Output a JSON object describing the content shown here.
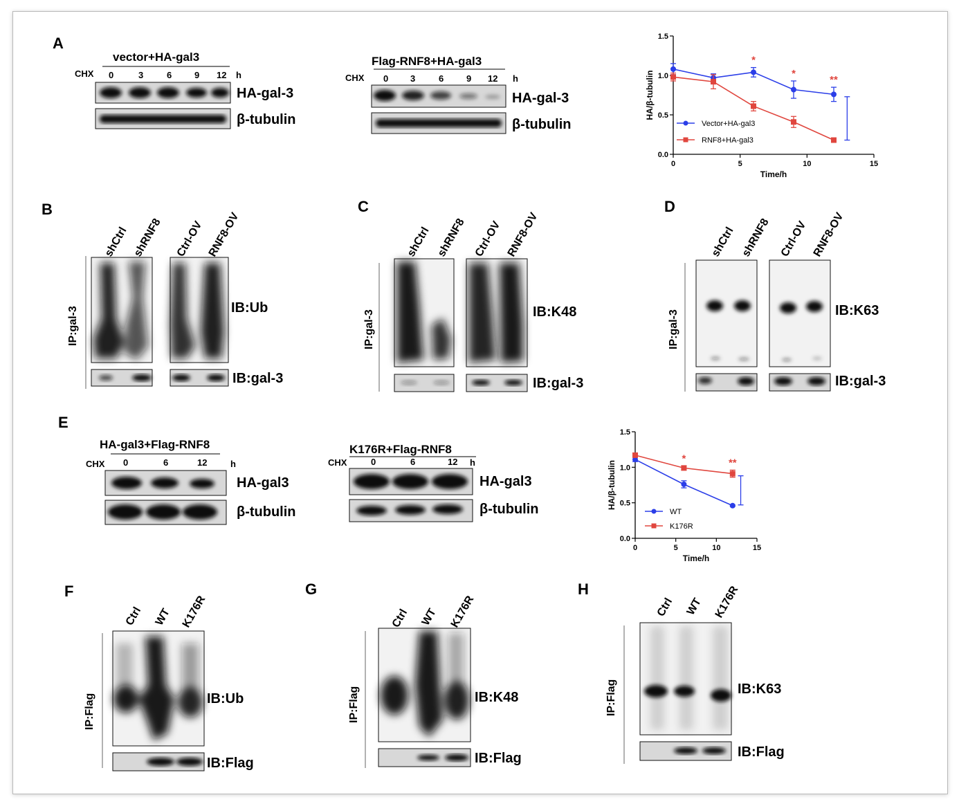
{
  "panels": {
    "A": {
      "label": "A",
      "left": {
        "title": "vector+HA-gal3",
        "cond": "CHX",
        "times": [
          "0",
          "3",
          "6",
          "9",
          "12"
        ],
        "unit": "h",
        "rows": [
          "HA-gal-3",
          "β-tubulin"
        ]
      },
      "right": {
        "title": "Flag-RNF8+HA-gal3",
        "cond": "CHX",
        "times": [
          "0",
          "3",
          "6",
          "9",
          "12"
        ],
        "unit": "h",
        "rows": [
          "HA-gal-3",
          "β-tubulin"
        ]
      }
    },
    "B": {
      "label": "B",
      "lanes": [
        "shCtrl",
        "shRNF8",
        "Ctrl-OV",
        "RNF8-OV"
      ],
      "ip": "IP:gal-3",
      "ib_top": "IB:Ub",
      "ib_bottom": "IB:gal-3"
    },
    "C": {
      "label": "C",
      "lanes": [
        "shCtrl",
        "shRNF8",
        "Ctrl-OV",
        "RNF8-OV"
      ],
      "ip": "IP:gal-3",
      "ib_top": "IB:K48",
      "ib_bottom": "IB:gal-3"
    },
    "D": {
      "label": "D",
      "lanes": [
        "shCtrl",
        "shRNF8",
        "Ctrl-OV",
        "RNF8-OV"
      ],
      "ip": "IP:gal-3",
      "ib_top": "IB:K63",
      "ib_bottom": "IB:gal-3"
    },
    "E": {
      "label": "E",
      "left": {
        "title": "HA-gal3+Flag-RNF8",
        "cond": "CHX",
        "times": [
          "0",
          "6",
          "12"
        ],
        "unit": "h",
        "rows": [
          "HA-gal3",
          "β-tubulin"
        ]
      },
      "right": {
        "title": "K176R+Flag-RNF8",
        "cond": "CHX",
        "times": [
          "0",
          "6",
          "12"
        ],
        "unit": "h",
        "rows": [
          "HA-gal3",
          "β-tubulin"
        ]
      }
    },
    "F": {
      "label": "F",
      "lanes": [
        "Ctrl",
        "WT",
        "K176R"
      ],
      "ip": "IP:Flag",
      "ib_top": "IB:Ub",
      "ib_bottom": "IB:Flag"
    },
    "G": {
      "label": "G",
      "lanes": [
        "Ctrl",
        "WT",
        "K176R"
      ],
      "ip": "IP:Flag",
      "ib_top": "IB:K48",
      "ib_bottom": "IB:Flag"
    },
    "H": {
      "label": "H",
      "lanes": [
        "Ctrl",
        "WT",
        "K176R"
      ],
      "ip": "IP:Flag",
      "ib_top": "IB:K63",
      "ib_bottom": "IB:Flag"
    }
  },
  "chart_data": [
    {
      "type": "line",
      "panel": "A",
      "xlabel": "Time/h",
      "ylabel": "HA/β-tubulin",
      "xlim": [
        0,
        15
      ],
      "ylim": [
        0,
        1.5
      ],
      "xticks": [
        "0",
        "5",
        "10",
        "15"
      ],
      "yticks": [
        "0.0",
        "0.5",
        "1.0",
        "1.5"
      ],
      "legend_position": "bottom-left",
      "series": [
        {
          "name": "Vector+HA-gal3",
          "color": "#2b3ee8",
          "marker": "circle",
          "x": [
            0,
            3,
            6,
            9,
            12
          ],
          "y": [
            1.08,
            0.97,
            1.04,
            0.82,
            0.76
          ],
          "err": [
            0.07,
            0.05,
            0.06,
            0.11,
            0.09
          ]
        },
        {
          "name": "RNF8+HA-gal3",
          "color": "#e0463e",
          "marker": "square",
          "x": [
            0,
            3,
            6,
            9,
            12
          ],
          "y": [
            0.98,
            0.92,
            0.61,
            0.41,
            0.18
          ],
          "err": [
            0.05,
            0.09,
            0.06,
            0.07,
            0.02
          ]
        }
      ],
      "annotations": [
        {
          "x": 6,
          "text": "*"
        },
        {
          "x": 9,
          "text": "*"
        },
        {
          "x": 12,
          "text": "**"
        }
      ],
      "bracket": {
        "x": 13,
        "y_top": 0.73,
        "y_bottom": 0.18
      }
    },
    {
      "type": "line",
      "panel": "E",
      "xlabel": "Time/h",
      "ylabel": "HA/β-tubulin",
      "xlim": [
        0,
        15
      ],
      "ylim": [
        0,
        1.5
      ],
      "xticks": [
        "0",
        "5",
        "10",
        "15"
      ],
      "yticks": [
        "0.0",
        "0.5",
        "1.0",
        "1.5"
      ],
      "legend_position": "bottom-left",
      "series": [
        {
          "name": "WT",
          "color": "#2b3ee8",
          "marker": "circle",
          "x": [
            0,
            6,
            12
          ],
          "y": [
            1.11,
            0.76,
            0.46
          ],
          "err": [
            0.03,
            0.05,
            0.01
          ]
        },
        {
          "name": "K176R",
          "color": "#e0463e",
          "marker": "square",
          "x": [
            0,
            6,
            12
          ],
          "y": [
            1.17,
            0.99,
            0.91
          ],
          "err": [
            0.02,
            0.03,
            0.05
          ]
        }
      ],
      "annotations": [
        {
          "x": 6,
          "text": "*"
        },
        {
          "x": 12,
          "text": "**"
        }
      ],
      "bracket": {
        "x": 13,
        "y_top": 0.88,
        "y_bottom": 0.47
      }
    }
  ]
}
